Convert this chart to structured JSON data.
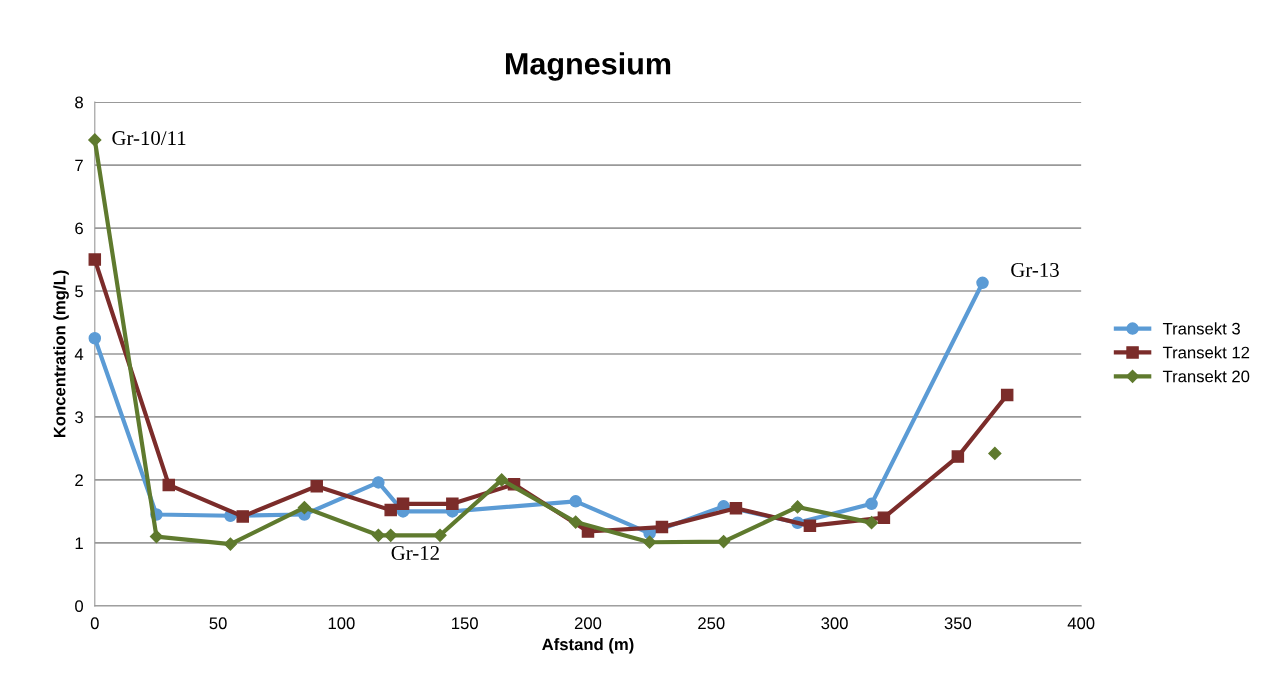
{
  "chart_data": {
    "type": "line",
    "title": "Magnesium",
    "xlabel": "Afstand (m)",
    "ylabel": "Koncentration (mg/L)",
    "xlim": [
      0,
      400
    ],
    "xticks": [
      0,
      50,
      100,
      150,
      200,
      250,
      300,
      350,
      400
    ],
    "ylim": [
      0,
      8
    ],
    "yticks": [
      0,
      1,
      2,
      3,
      4,
      5,
      6,
      7,
      8
    ],
    "grid": "y",
    "legend": "right",
    "series": [
      {
        "name": "Transekt 3",
        "color": "#5b9bd5",
        "marker": "circle",
        "x": [
          0,
          25,
          55,
          85,
          115,
          125,
          145,
          195,
          225,
          255,
          285,
          315,
          360
        ],
        "values": [
          4.25,
          1.45,
          1.43,
          1.45,
          1.96,
          1.5,
          1.5,
          1.66,
          1.15,
          1.58,
          1.32,
          1.62,
          5.13
        ]
      },
      {
        "name": "Transekt 12",
        "color": "#7b2c2a",
        "marker": "square",
        "x": [
          0,
          30,
          60,
          90,
          120,
          125,
          145,
          170,
          200,
          230,
          260,
          290,
          320,
          350,
          370
        ],
        "values": [
          5.5,
          1.92,
          1.42,
          1.9,
          1.52,
          1.62,
          1.62,
          1.93,
          1.18,
          1.25,
          1.55,
          1.27,
          1.4,
          2.37,
          3.35
        ]
      },
      {
        "name": "Transekt 20",
        "color": "#5f7a2e",
        "marker": "diamond",
        "x": [
          0,
          25,
          55,
          85,
          115,
          120,
          140,
          165,
          195,
          225,
          255,
          285,
          315,
          340,
          365
        ],
        "values": [
          7.4,
          1.1,
          0.98,
          1.56,
          1.12,
          1.12,
          1.12,
          2.0,
          1.33,
          1.01,
          1.02,
          1.57,
          1.32,
          null,
          2.42
        ]
      }
    ],
    "annotations": [
      {
        "text": "Gr-10/11",
        "x": 0,
        "y": 7.4
      },
      {
        "text": "Gr-12",
        "x": 120,
        "y": 1.12
      },
      {
        "text": "Gr-13",
        "x": 360,
        "y": 5.13
      }
    ]
  }
}
